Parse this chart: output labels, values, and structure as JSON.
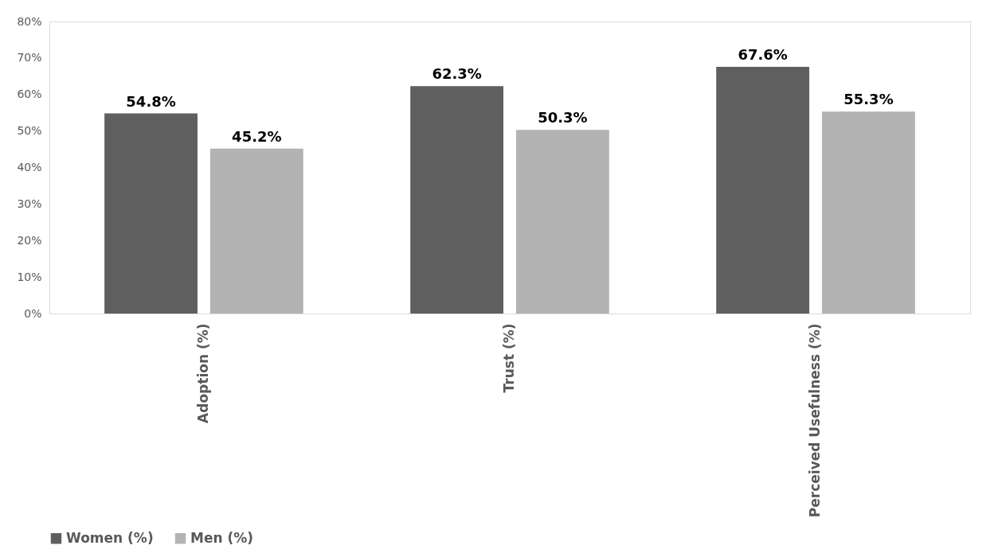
{
  "chart_data": {
    "type": "bar",
    "categories": [
      "Adoption (%)",
      "Trust (%)",
      "Perceived Usefulness (%)"
    ],
    "series": [
      {
        "name": "Women (%)",
        "color": "#5f5f5f",
        "values": [
          54.8,
          62.3,
          67.6
        ],
        "value_labels": [
          "54.8%",
          "62.3%",
          "67.6%"
        ]
      },
      {
        "name": "Men (%)",
        "color": "#b3b3b3",
        "values": [
          45.2,
          50.3,
          55.3
        ],
        "value_labels": [
          "45.2%",
          "50.3%",
          "55.3%"
        ]
      }
    ],
    "ylim": [
      0,
      80
    ],
    "yticks": [
      {
        "value": 0,
        "label": "0%"
      },
      {
        "value": 10,
        "label": "10%"
      },
      {
        "value": 20,
        "label": "20%"
      },
      {
        "value": 30,
        "label": "30%"
      },
      {
        "value": 40,
        "label": "40%"
      },
      {
        "value": 50,
        "label": "50%"
      },
      {
        "value": 60,
        "label": "60%"
      },
      {
        "value": 70,
        "label": "70%"
      },
      {
        "value": 80,
        "label": "80%"
      }
    ],
    "grid": false,
    "legend": "bottom"
  }
}
